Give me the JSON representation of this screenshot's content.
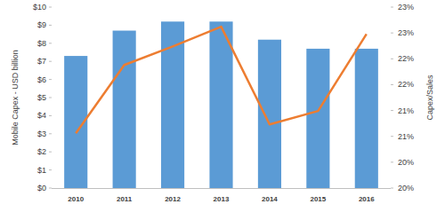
{
  "chart_data": {
    "type": "combo",
    "y_label": "Mobile Capex - USD billion",
    "y2_label": "Capex/Sales",
    "categories": [
      "2010",
      "2011",
      "2012",
      "2013",
      "2014",
      "2015",
      "2016"
    ],
    "series": [
      {
        "type": "bar",
        "color": "#5b9bd5",
        "values": [
          7.3,
          8.7,
          9.2,
          9.2,
          8.2,
          7.7,
          7.7
        ]
      },
      {
        "type": "line",
        "axis": "y2",
        "color": "#ed7d31",
        "values": [
          20.56,
          21.88,
          22.24,
          22.62,
          20.73,
          20.99,
          22.48
        ]
      }
    ],
    "ylim": [
      0,
      10
    ],
    "yticks": [
      {
        "value": 0,
        "label": "$0"
      },
      {
        "value": 1,
        "label": "$1"
      },
      {
        "value": 2,
        "label": "$2"
      },
      {
        "value": 3,
        "label": "$3"
      },
      {
        "value": 4,
        "label": "$4"
      },
      {
        "value": 5,
        "label": "$5"
      },
      {
        "value": 6,
        "label": "$6"
      },
      {
        "value": 7,
        "label": "$7"
      },
      {
        "value": 8,
        "label": "$8"
      },
      {
        "value": 9,
        "label": "$9"
      },
      {
        "value": 10,
        "label": "$10"
      }
    ],
    "y2lim": [
      19.5,
      23.0
    ],
    "y2ticks": [
      {
        "value": 19.5,
        "label": "20%"
      },
      {
        "value": 20.0,
        "label": "20%"
      },
      {
        "value": 20.5,
        "label": "21%"
      },
      {
        "value": 21.0,
        "label": "21%"
      },
      {
        "value": 21.5,
        "label": "22%"
      },
      {
        "value": 22.0,
        "label": "22%"
      },
      {
        "value": 22.5,
        "label": "23%"
      },
      {
        "value": 23.0,
        "label": "23%"
      }
    ],
    "grid": false
  }
}
